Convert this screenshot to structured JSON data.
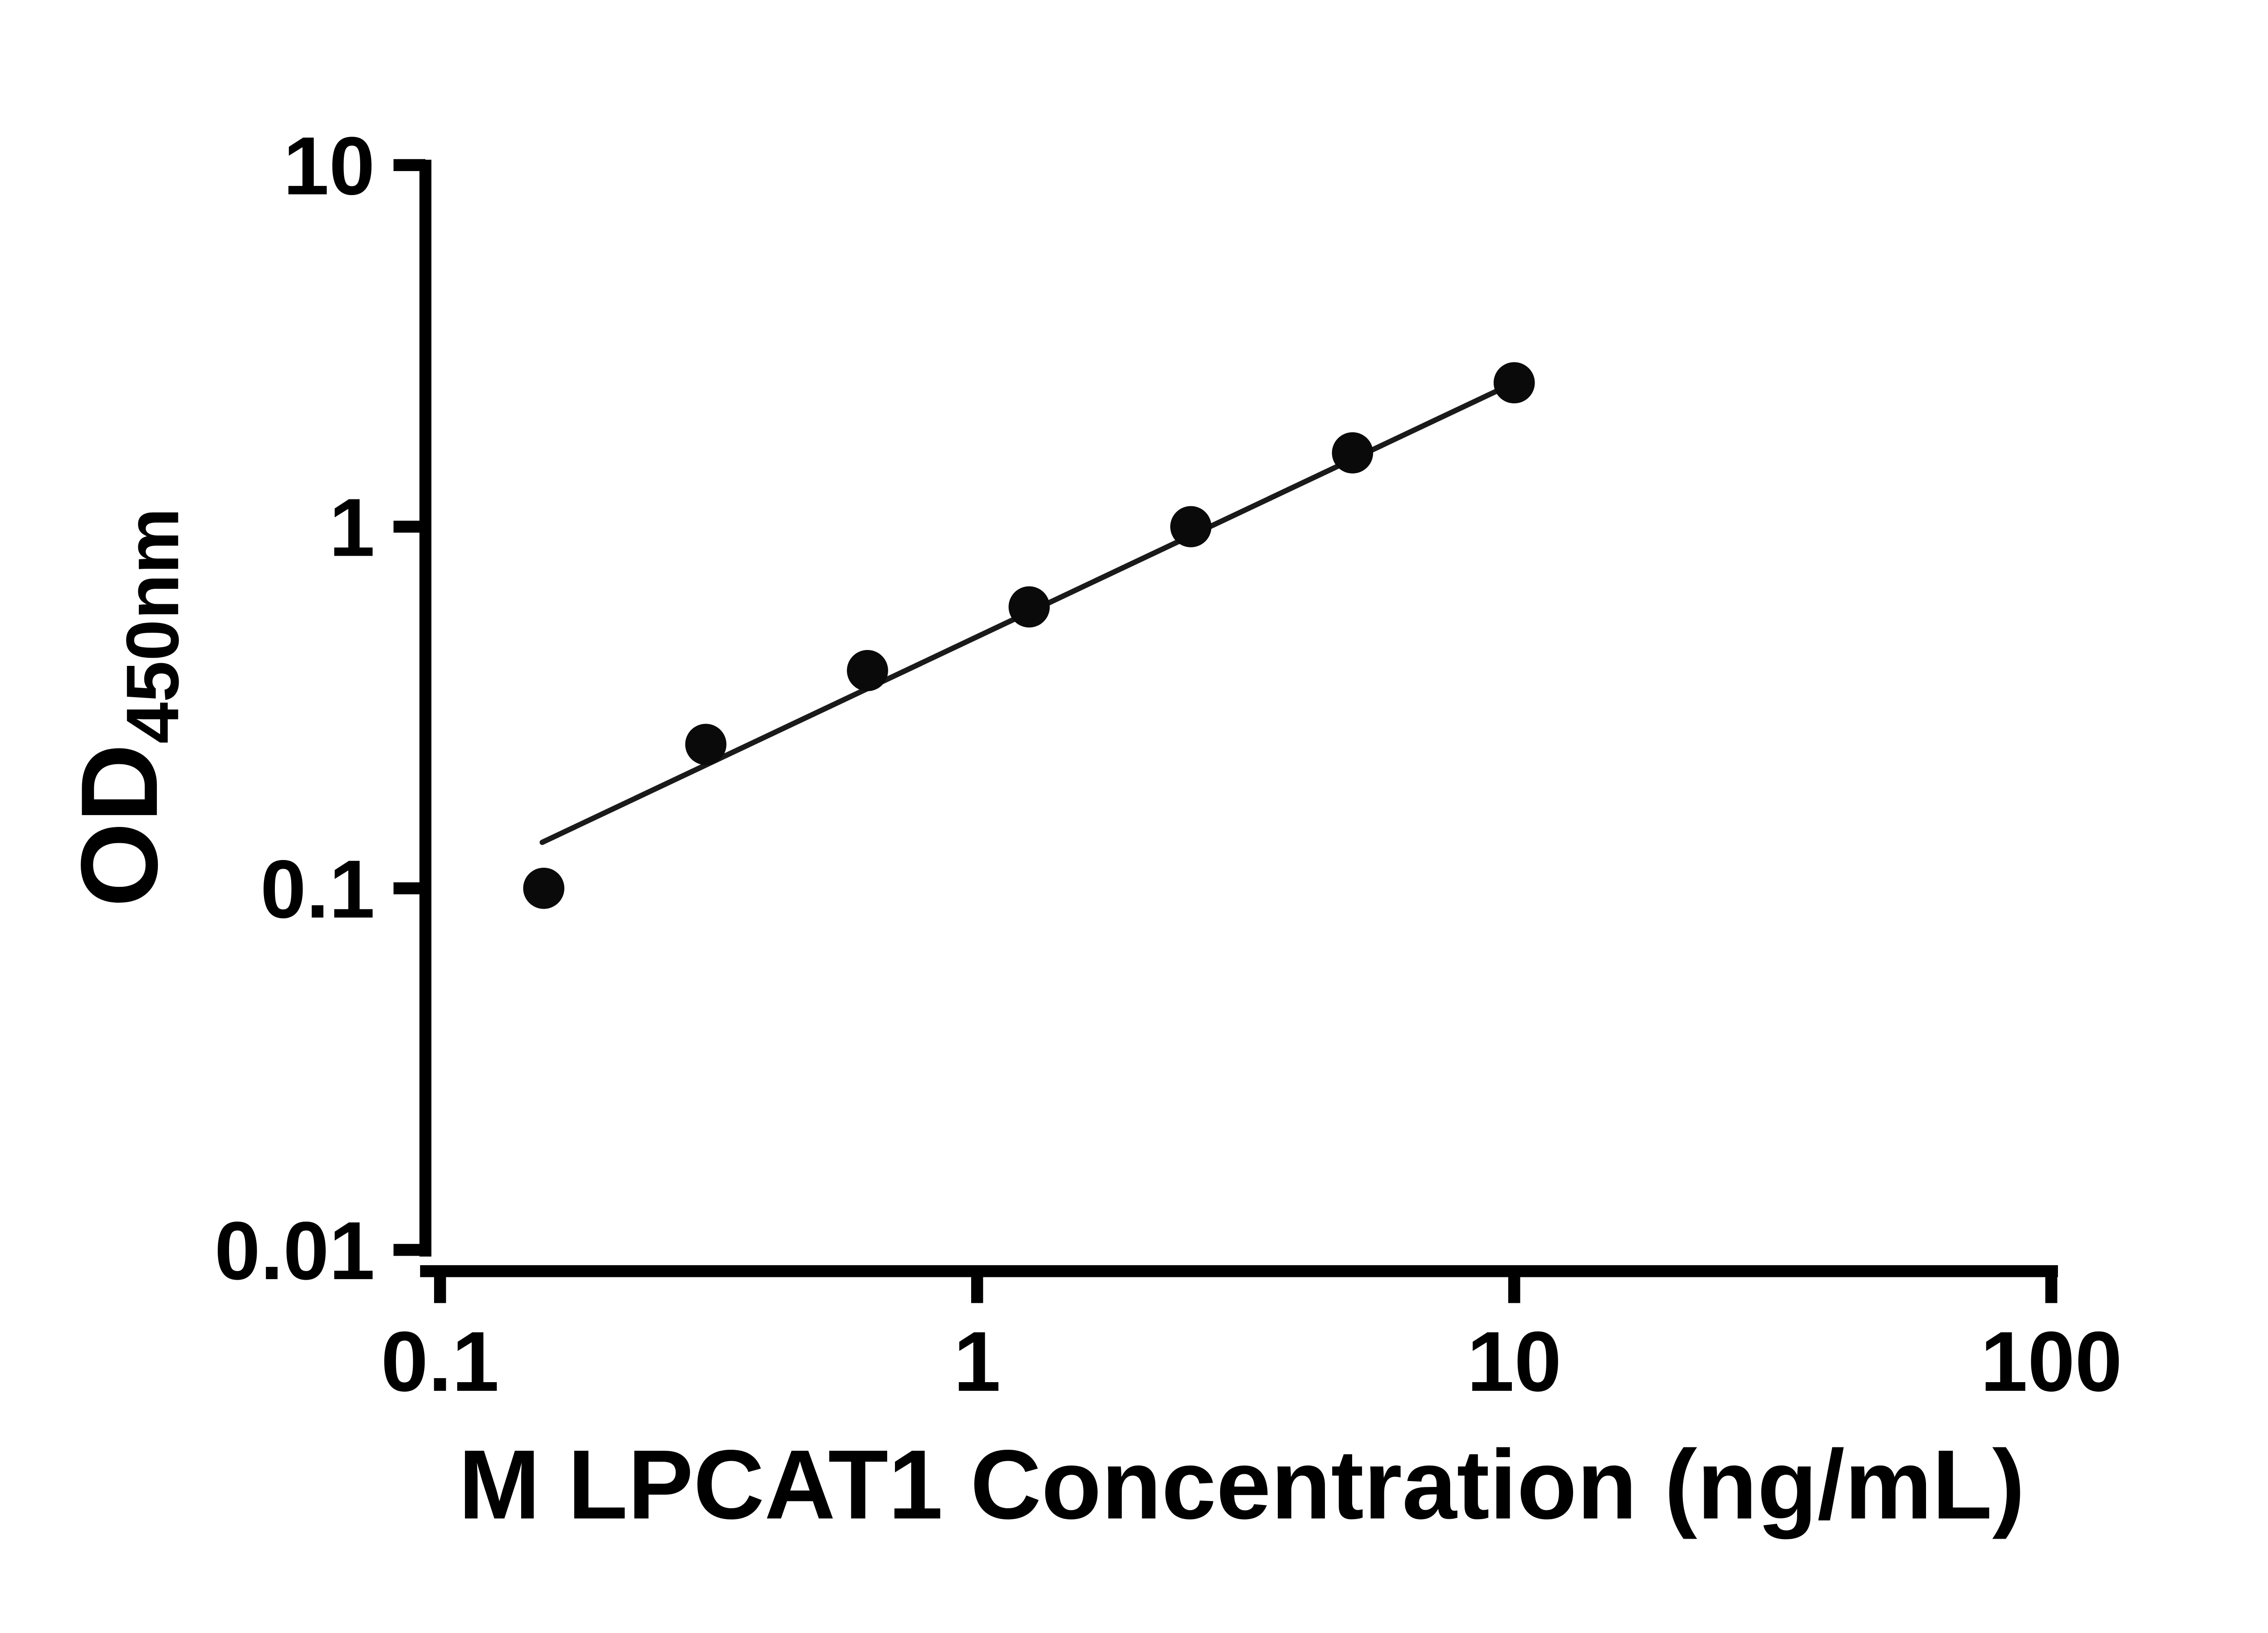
{
  "chart_data": {
    "type": "scatter",
    "title": "",
    "xlabel": "M LPCAT1 Concentration (ng/mL)",
    "ylabel": "OD450nm",
    "ylabel_main": "OD",
    "ylabel_sub": "450nm",
    "x_scale": "log",
    "y_scale": "log",
    "xlim": [
      0.1,
      100
    ],
    "ylim": [
      0.01,
      10
    ],
    "grid": false,
    "legend": "none",
    "x_ticks": [
      {
        "value": 0.1,
        "label": "0.1"
      },
      {
        "value": 1,
        "label": "1"
      },
      {
        "value": 10,
        "label": "10"
      },
      {
        "value": 100,
        "label": "100"
      }
    ],
    "y_ticks": [
      {
        "value": 10,
        "label": "10"
      },
      {
        "value": 1,
        "label": "1"
      },
      {
        "value": 0.1,
        "label": "0.1"
      },
      {
        "value": 0.01,
        "label": "0.01"
      }
    ],
    "points": [
      {
        "x": 0.156,
        "y": 0.1
      },
      {
        "x": 0.3125,
        "y": 0.25
      },
      {
        "x": 0.625,
        "y": 0.4
      },
      {
        "x": 1.25,
        "y": 0.6
      },
      {
        "x": 2.5,
        "y": 1.0
      },
      {
        "x": 5,
        "y": 1.6
      },
      {
        "x": 10,
        "y": 2.5
      }
    ],
    "trend_line": {
      "start": {
        "x": 0.155,
        "y": 0.134
      },
      "end": {
        "x": 10,
        "y": 2.5
      }
    },
    "colors": {
      "axis": "#000000",
      "tick_text": "#000000",
      "point": "#0a0a0a",
      "trend": "#1a1a1a",
      "background": "#ffffff"
    }
  }
}
